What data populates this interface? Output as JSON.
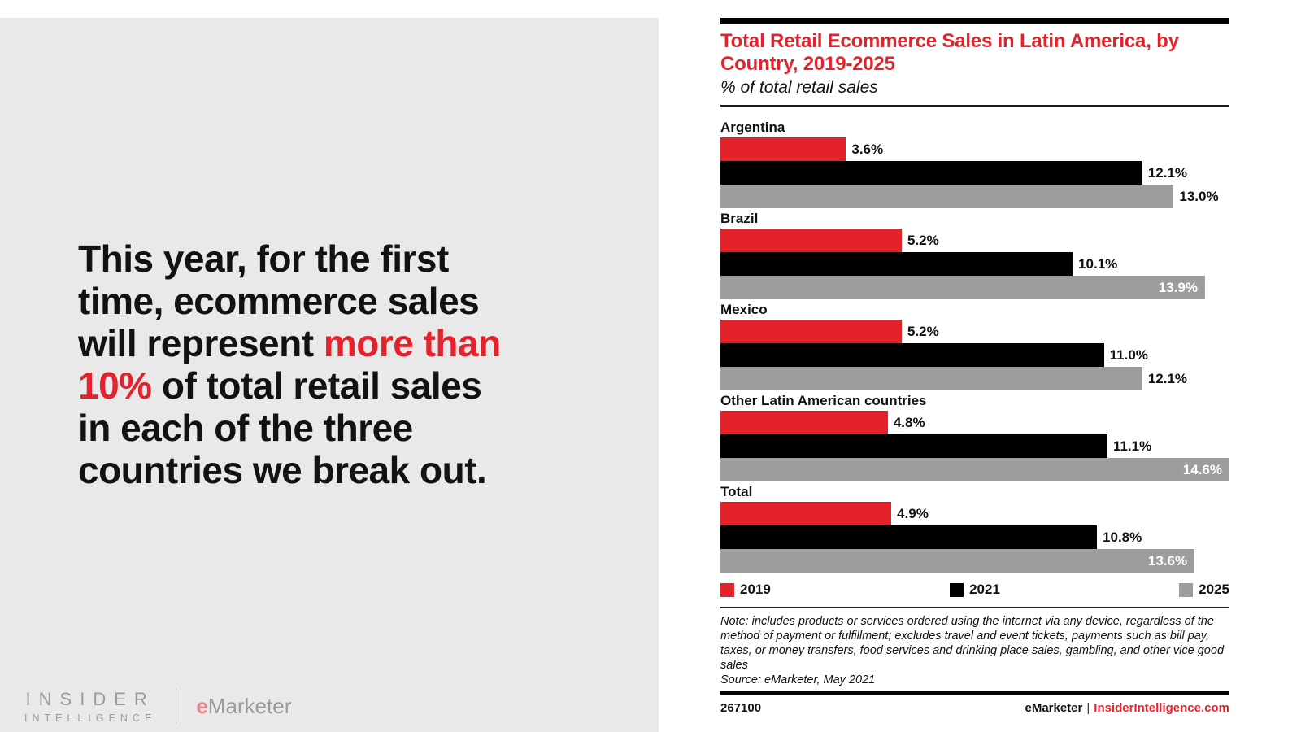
{
  "colors": {
    "accent_red": "#e4222c",
    "bar_black": "#000000",
    "bar_gray": "#9d9d9d",
    "left_bg": "#e9e9e9",
    "logo_gray": "#9b9b9b",
    "logo_e_red": "#ea868b"
  },
  "headline": {
    "lines": [
      [
        {
          "t": "This year, for the first",
          "red": false
        }
      ],
      [
        {
          "t": "time, ecommerce sales",
          "red": false
        }
      ],
      [
        {
          "t": "will represent ",
          "red": false
        },
        {
          "t": "more than",
          "red": true
        }
      ],
      [
        {
          "t": "10%",
          "red": true
        },
        {
          "t": " of total retail sales",
          "red": false
        }
      ],
      [
        {
          "t": "in each of the three",
          "red": false
        }
      ],
      [
        {
          "t": "countries we break out.",
          "red": false
        }
      ]
    ]
  },
  "brand": {
    "insider_line1": "INSIDER",
    "insider_line2": "INTELLIGENCE",
    "emarketer_e": "e",
    "emarketer_rest": "Marketer"
  },
  "chart": {
    "title": "Total Retail Ecommerce Sales in Latin America, by Country, 2019-2025",
    "subtitle": "% of total retail sales"
  },
  "chart_data": {
    "type": "bar",
    "orientation": "horizontal",
    "title": "Total Retail Ecommerce Sales in Latin America, by Country, 2019-2025",
    "subtitle": "% of total retail sales",
    "unit": "% of total retail sales",
    "categories": [
      "Argentina",
      "Brazil",
      "Mexico",
      "Other Latin American countries",
      "Total"
    ],
    "series": [
      {
        "name": "2019",
        "color": "#e4222c",
        "values": [
          3.6,
          5.2,
          5.2,
          4.8,
          4.9
        ],
        "labels": [
          "3.6%",
          "5.2%",
          "5.2%",
          "4.8%",
          "4.9%"
        ]
      },
      {
        "name": "2021",
        "color": "#000000",
        "values": [
          12.1,
          10.1,
          11.0,
          11.1,
          10.8
        ],
        "labels": [
          "12.1%",
          "10.1%",
          "11.0%",
          "11.1%",
          "10.8%"
        ]
      },
      {
        "name": "2025",
        "color": "#9d9d9d",
        "values": [
          13.0,
          13.9,
          12.1,
          14.6,
          13.6
        ],
        "labels": [
          "13.0%",
          "13.9%",
          "12.1%",
          "14.6%",
          "13.6%"
        ]
      }
    ],
    "xlim": [
      0,
      14.6
    ],
    "grid": false,
    "legend_position": "bottom"
  },
  "note": {
    "note_text": "Note: includes products or services ordered using the internet via any device, regardless of the method of payment or fulfillment; excludes travel and event tickets, payments such as bill pay, taxes, or money transfers, food services and drinking place sales, gambling, and other vice good sales",
    "source_text": "Source: eMarketer, May 2021"
  },
  "footer": {
    "chart_id": "267100",
    "brand": "eMarketer",
    "separator": "|",
    "site": "InsiderIntelligence.com"
  }
}
